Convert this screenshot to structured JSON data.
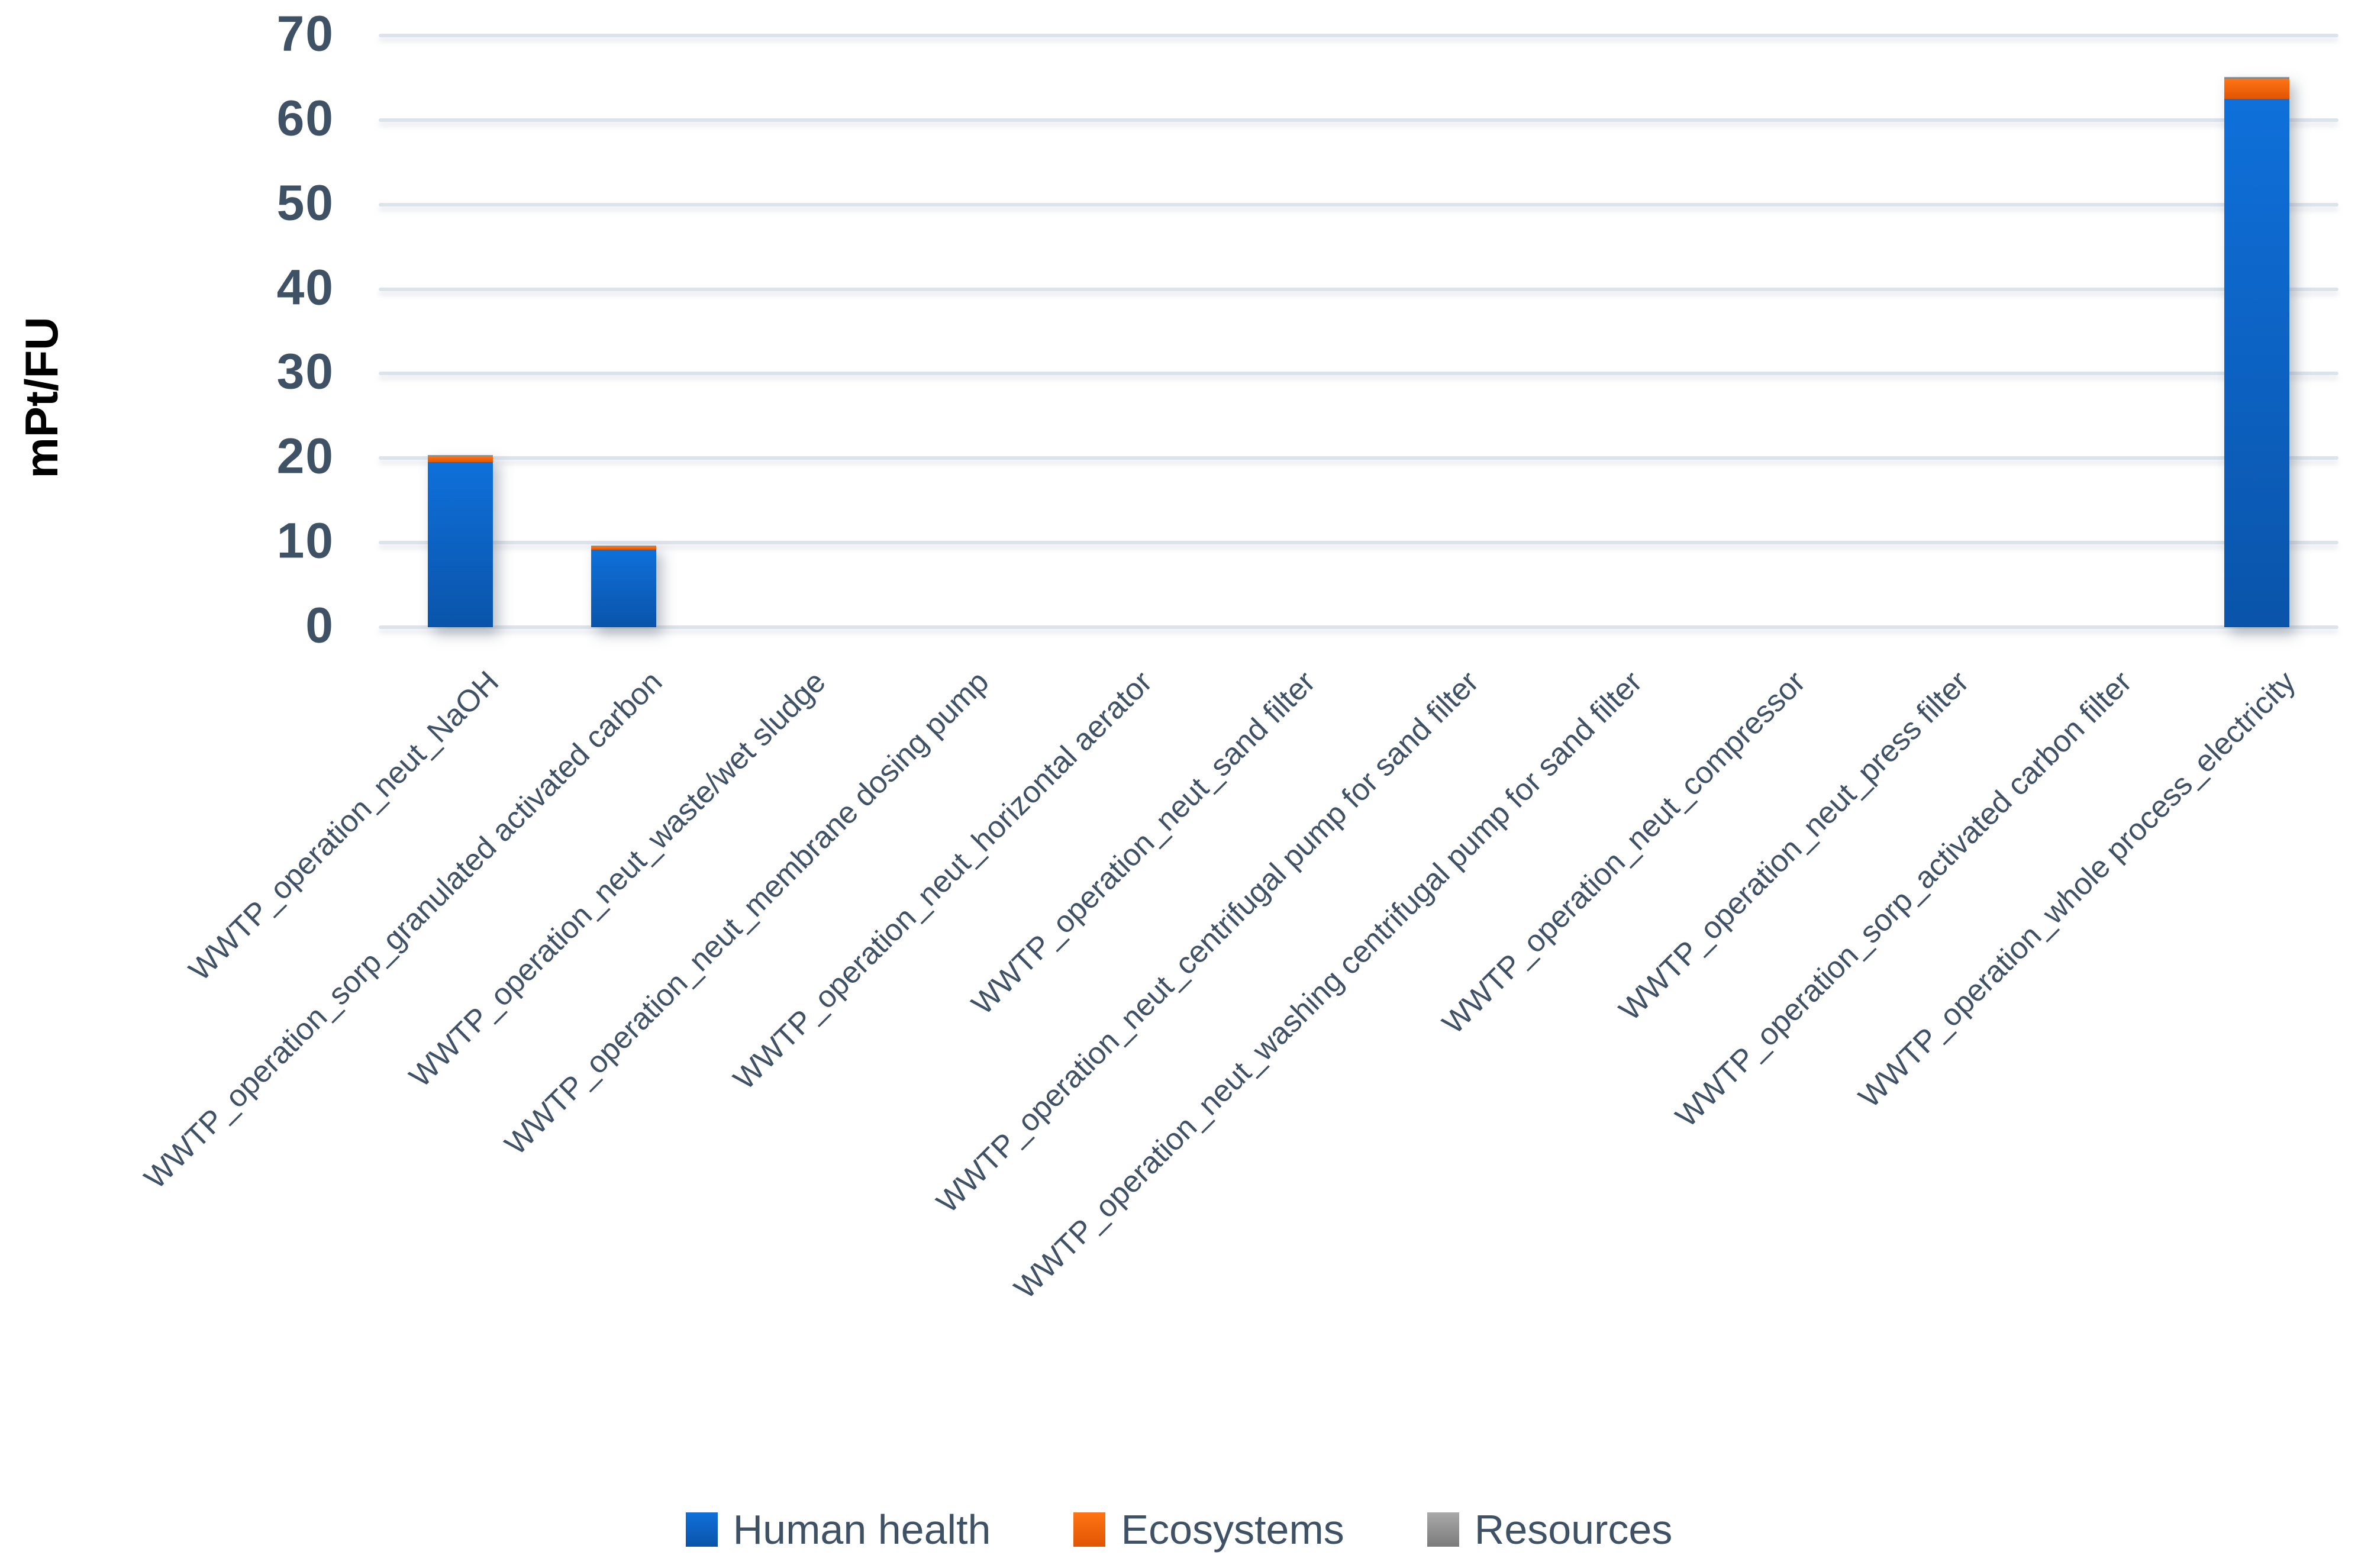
{
  "page": {
    "background": "#ffffff"
  },
  "chart_data": {
    "type": "bar",
    "stacked": true,
    "title": "",
    "xlabel": "",
    "ylabel": "mPt/FU",
    "ylim": [
      0,
      70
    ],
    "yticks": [
      0,
      10,
      20,
      30,
      40,
      50,
      60,
      70
    ],
    "grid": "horizontal-only",
    "legend_position": "bottom-center",
    "text_color": "#3e5165",
    "gridline_color": "#dde3eb",
    "categories": [
      "WWTP_operation_neut_NaOH",
      "WWTP_operation_sorp_granulated activated carbon",
      "WWTP_operation_neut_waste/wet sludge",
      "WWTP_operation_neut_membrane dosing pump",
      "WWTP_operation_neut_horizontal aerator",
      "WWTP_operation_neut_sand filter",
      "WWTP_operation_neut_centrifugal pump for sand filter",
      "WWTP_operation_neut_washing centrifugal pump for sand filter",
      "WWTP_operation_neut_compressor",
      "WWTP_operation_neut_press filter",
      "WWTP_operation_sorp_activated carbon filter",
      "WWTP_operation_whole process_electricity"
    ],
    "series": [
      {
        "name": "Human health",
        "color_top": "#0f70da",
        "color_bottom": "#0a54aa",
        "values": [
          19.5,
          9.2,
          0,
          0,
          0,
          0,
          0,
          0,
          0,
          0,
          0,
          62.5
        ]
      },
      {
        "name": "Ecosystems",
        "color_top": "#ff7414",
        "color_bottom": "#e15503",
        "values": [
          0.7,
          0.35,
          0,
          0,
          0,
          0,
          0,
          0,
          0,
          0,
          0,
          2.4
        ]
      },
      {
        "name": "Resources",
        "color_top": "#a9a9a9",
        "color_bottom": "#7b7b7b",
        "values": [
          0.2,
          0.12,
          0,
          0,
          0,
          0,
          0,
          0,
          0,
          0,
          0,
          0.2
        ]
      }
    ]
  }
}
